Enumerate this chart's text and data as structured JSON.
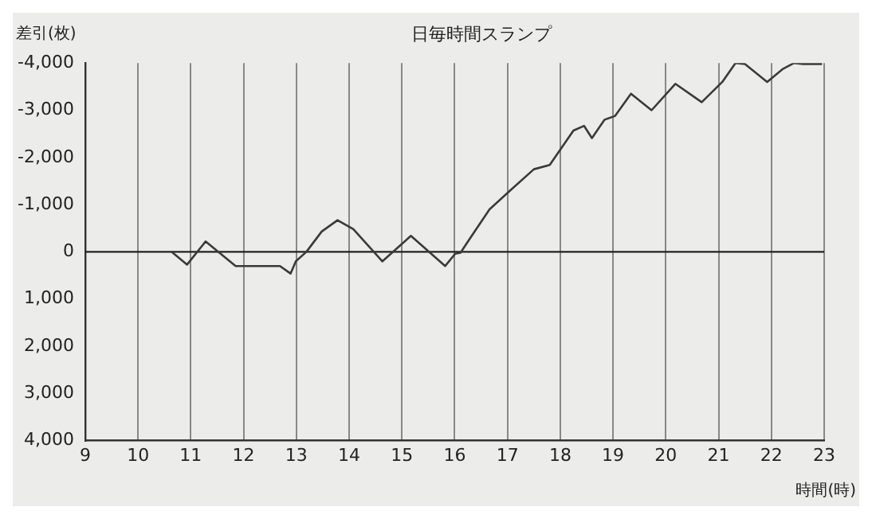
{
  "chart_data": {
    "type": "line",
    "title": "日毎時間スランプ",
    "ylabel": "差引(枚)",
    "xlabel": "時間(時)",
    "series": [
      {
        "color": "#3a3a3a",
        "x": [
          10.64,
          10.93,
          11.28,
          11.85,
          12.69,
          12.89,
          12.99,
          13.19,
          13.48,
          13.78,
          14.08,
          14.63,
          15.17,
          15.82,
          16.01,
          16.11,
          16.31,
          16.66,
          17.06,
          17.5,
          17.8,
          18.25,
          18.45,
          18.6,
          18.84,
          19.04,
          19.34,
          19.73,
          20.18,
          20.68,
          21.07,
          21.32,
          21.5,
          21.92,
          22.21,
          22.43,
          22.6,
          22.96
        ],
        "values": [
          0,
          270,
          -220,
          300,
          300,
          460,
          200,
          0,
          -430,
          -670,
          -480,
          200,
          -340,
          300,
          40,
          20,
          -320,
          -900,
          -1310,
          -1750,
          -1840,
          -2570,
          -2670,
          -2410,
          -2800,
          -2880,
          -3350,
          -3000,
          -3560,
          -3170,
          -3600,
          -4000,
          -3980,
          -3600,
          -3870,
          -4000,
          -3980,
          -3980
        ]
      }
    ],
    "xlim": [
      9,
      23
    ],
    "xticks": [
      9,
      10,
      11,
      12,
      13,
      14,
      15,
      16,
      17,
      18,
      19,
      20,
      21,
      22,
      23
    ],
    "ylim": [
      4000,
      -4000
    ],
    "yticks": [
      {
        "value": -4000,
        "label": "-4,000"
      },
      {
        "value": -3000,
        "label": "-3,000"
      },
      {
        "value": -2000,
        "label": "-2,000"
      },
      {
        "value": -1000,
        "label": "-1,000"
      },
      0,
      {
        "value": 1000,
        "label": "1,000"
      },
      {
        "value": 2000,
        "label": "2,000"
      },
      {
        "value": 3000,
        "label": "3,000"
      },
      {
        "value": 4000,
        "label": "4,000"
      }
    ],
    "ref_lines": [
      {
        "axis": "y",
        "value": 0,
        "color": "#222222"
      }
    ],
    "grid": "x",
    "legend": false,
    "marker": "none",
    "line_style": "solid"
  }
}
